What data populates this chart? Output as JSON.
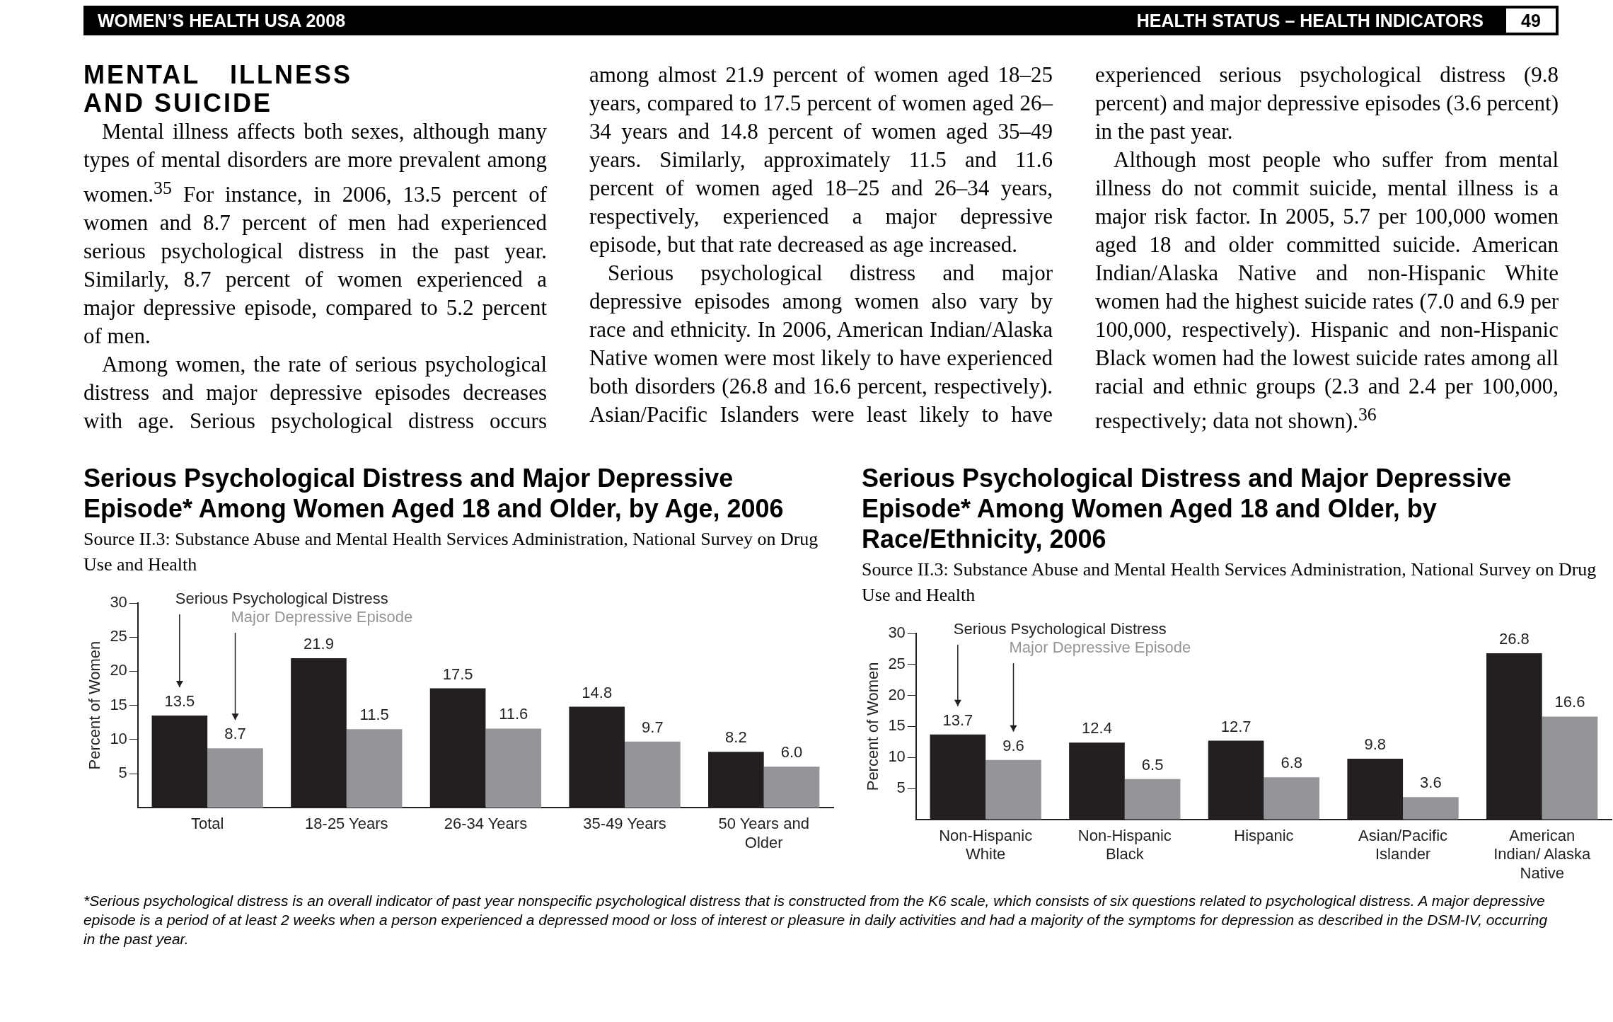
{
  "chart_data": [
    {
      "type": "bar",
      "title": "Serious Psychological Distress and Major Depressive Episode* Among Women Aged 18 and Older, by Age, 2006",
      "subtitle": "Source II.3: Substance Abuse and Mental Health Services Administration, National Survey on Drug Use and Health",
      "ylabel": "Percent of Women",
      "categories": [
        "Total",
        "18-25 Years",
        "26-34 Years",
        "35-49 Years",
        "50 Years and Older"
      ],
      "series": [
        {
          "name": "Serious Psychological Distress",
          "color": "#231f20",
          "values": [
            13.5,
            21.9,
            17.5,
            14.8,
            8.2
          ],
          "value_labels": [
            "13.5",
            "21.9",
            "17.5",
            "14.8",
            "8.2"
          ]
        },
        {
          "name": "Major Depressive Episode",
          "color": "#939598",
          "values": [
            8.7,
            11.5,
            11.6,
            9.7,
            6.0
          ],
          "value_labels": [
            "8.7",
            "11.5",
            "11.6",
            "9.7",
            "6.0"
          ]
        }
      ],
      "ylim": [
        0,
        30
      ],
      "yticks": [
        5,
        10,
        15,
        20,
        25,
        30
      ],
      "grid": false,
      "annotations": [
        "WOMEN’S HEALTH USA 2008",
        "HEALTH STATUS – HEALTH INDICATORS",
        "49",
        "MENTAL ILLNESS AND SUICIDE",
        "Mental illness affects both sexes, although many types of mental disorders are more prevalent among women.$^{35}$ For instance, in 2006, 13.5 percent of women and 8.7 percent of men had experienced serious psychological distress in the past year. Similarly, 8.7 percent of women experienced a major depressive episode, compared to 5.2 percent of men.",
        "Among women, the rate of serious psychological distress and major depressive episodes decreases with age. Serious psychological distress occurs among almost 21.9 percent of women aged 18–25 years, compared to 17.5 percent of women aged 26–34 years and 14.8 percent of women aged 35–49 years. Similarly, approximately 11.5 and 11.6 percent of women aged 18–25 and 26–34 years, respectively, experienced a major depressive episode, but that rate decreased as age increased.",
        "Serious psychological distress and major depressive episodes among women also vary by race and ethnicity. In 2006, American Indian/Alaska Native women were most likely to have experienced both disorders (26.8 and 16.6 percent, respectively). Asian/Pacific Islanders were least likely to have experienced serious psychological distress (9.8 percent) and major depressive episodes (3.6 percent) in the past year.",
        "Although most people who suffer from mental illness do not commit suicide, mental illness is a major risk factor. In 2005, 5.7 per 100,000 women aged 18 and older committed suicide. American Indian/Alaska Native and non-Hispanic White women had the highest suicide rates (7.0 and 6.9 per 100,000, respectively). Hispanic and non-Hispanic Black women had the lowest suicide rates among all racial and ethnic groups (2.3 and 2.4 per 100,000, respectively; data not shown).$^{36}$"
      ]
    },
    {
      "type": "bar",
      "title": "Serious Psychological Distress and Major Depressive Episode* Among Women Aged 18 and Older, by Race/Ethnicity, 2006",
      "subtitle": "Source II.3: Substance Abuse and Mental Health Services Administration, National Survey on Drug Use and Health",
      "ylabel": "Percent of Women",
      "categories": [
        "Non-Hispanic White",
        "Non-Hispanic Black",
        "Hispanic",
        "Asian/Pacific Islander",
        "American Indian/ Alaska Native"
      ],
      "series": [
        {
          "name": "Serious Psychological Distress",
          "color": "#231f20",
          "values": [
            13.7,
            12.4,
            12.7,
            9.8,
            26.8
          ],
          "value_labels": [
            "13.7",
            "12.4",
            "12.7",
            "9.8",
            "26.8"
          ]
        },
        {
          "name": "Major Depressive Episode",
          "color": "#939598",
          "values": [
            9.6,
            6.5,
            6.8,
            3.6,
            16.6
          ],
          "value_labels": [
            "9.6",
            "6.5",
            "6.8",
            "3.6",
            "16.6"
          ]
        }
      ],
      "ylim": [
        0,
        30
      ],
      "yticks": [
        5,
        10,
        15,
        20,
        25,
        30
      ],
      "grid": false,
      "annotations": [
        "*Serious psychological distress is an overall indicator of past year nonspecific psychological distress that is constructed from the K6 scale, which consists of six questions related to psychological distress. A major depressive episode is a period of at least 2 weeks when a person experienced a depressed mood or loss of interest or pleasure in daily activities and had a majority of the symptoms for depression as described in the DSM-IV, occurring in the past year."
      ]
    }
  ]
}
